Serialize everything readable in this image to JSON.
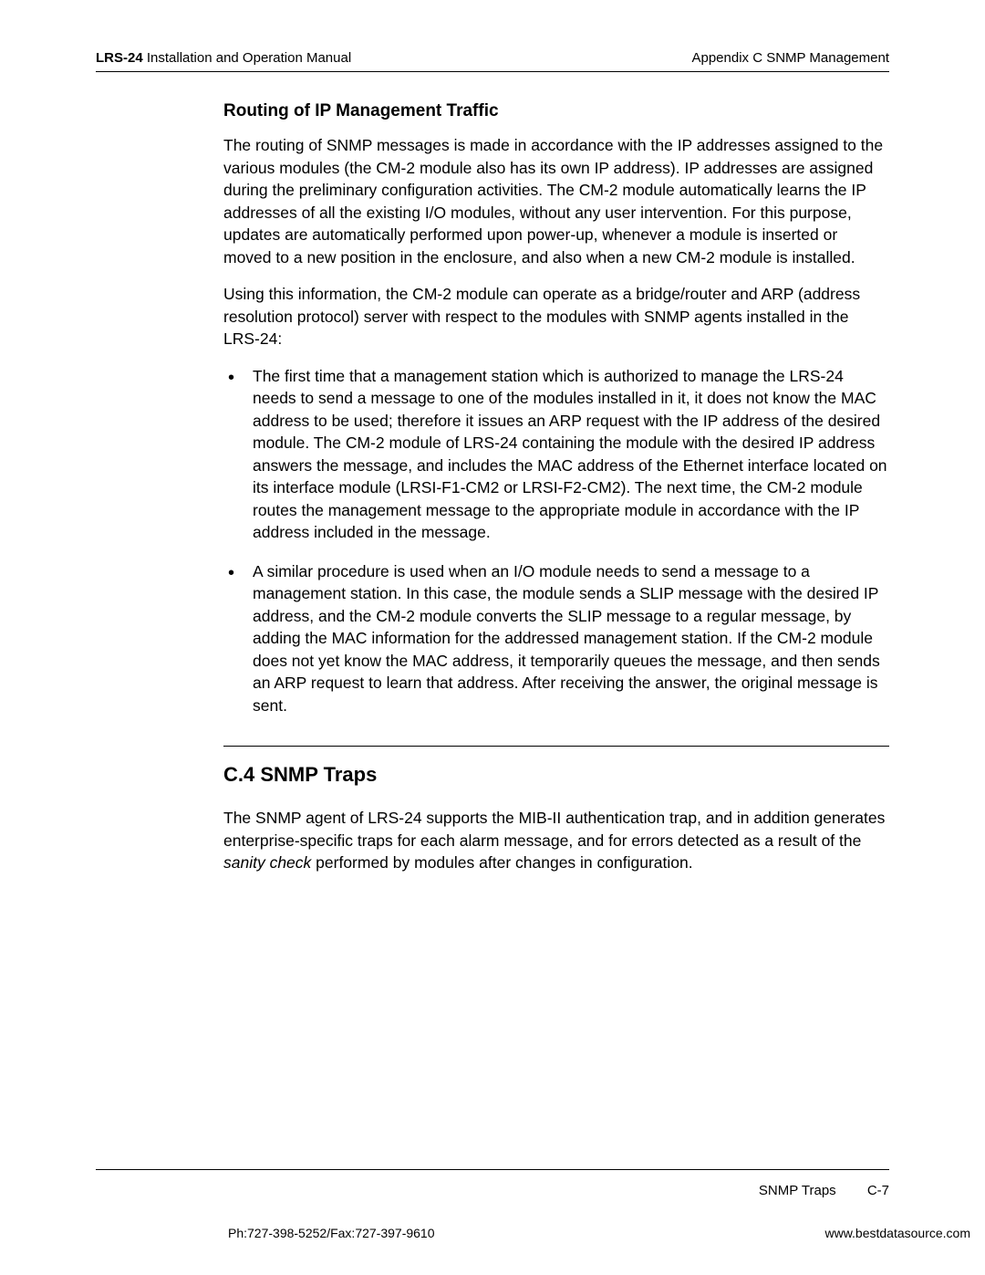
{
  "header": {
    "left_bold": "LRS-24",
    "left_rest": " Installation and Operation Manual",
    "right": "Appendix C  SNMP Management"
  },
  "section1": {
    "subheading": "Routing of IP Management Traffic",
    "p1": "The routing of SNMP messages is made in accordance with the IP addresses assigned to the various modules (the CM-2 module also has its own IP address). IP addresses are assigned during the preliminary configuration activities. The CM-2 module automatically learns the IP addresses of all the existing I/O modules, without any user intervention. For this purpose, updates are automatically performed upon power-up, whenever a module is inserted or moved to a new position in the enclosure, and also when a new CM-2 module is installed.",
    "p2": "Using this information, the CM-2 module can operate as a bridge/router and ARP (address resolution protocol) server with respect to the modules with SNMP agents installed in the LRS-24:",
    "bullets": [
      "The first time that a management station which is authorized to manage the LRS-24 needs to send a message to one of the modules installed in it, it does not know the MAC address to be used; therefore it issues an ARP request with the IP address of the desired module. The CM-2 module of LRS-24 containing the module with the desired IP address answers the message, and includes the MAC address of the Ethernet interface located on its interface module (LRSI-F1-CM2 or LRSI-F2-CM2).\nThe next time, the CM-2 module routes the management message to the appropriate module in accordance with the IP address included in the message.",
      "A similar procedure is used when an I/O module needs to send a message to a management station. In this case, the module sends a SLIP message with the desired IP address, and the CM-2 module converts the SLIP message to a regular message, by adding the MAC information for the addressed management station.\nIf the CM-2 module does not yet know the MAC address, it temporarily queues the message, and then sends an ARP request to learn that address. After receiving the answer, the original message is sent."
    ]
  },
  "section2": {
    "heading": "C.4  SNMP Traps",
    "p1_a": "The SNMP agent of LRS-24 supports the MIB-II authentication trap, and in addition generates enterprise-specific traps for each alarm message, and for errors detected as a result of the ",
    "p1_b": "sanity check",
    "p1_c": " performed by modules after changes in configuration."
  },
  "footer": {
    "section_label": "SNMP Traps",
    "page_num": "C-7",
    "phone": "Ph:727-398-5252/Fax:727-397-9610",
    "url": "www.bestdatasource.com"
  }
}
